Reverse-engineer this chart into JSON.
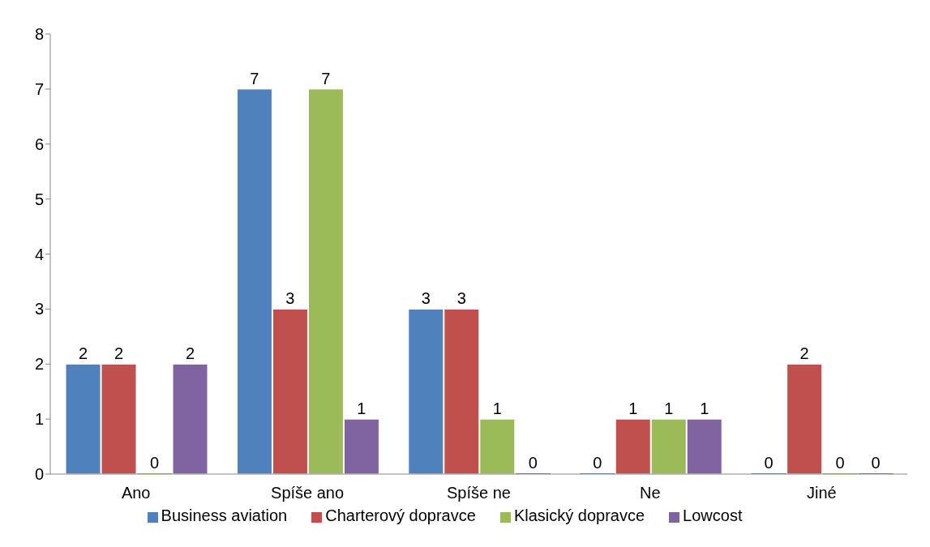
{
  "chart_data": {
    "type": "bar",
    "categories": [
      "Ano",
      "Spíše ano",
      "Spíše ne",
      "Ne",
      "Jiné"
    ],
    "series": [
      {
        "name": "Business aviation",
        "color": "#4f81bd",
        "values": [
          2,
          7,
          3,
          0,
          0
        ]
      },
      {
        "name": "Charterový dopravce",
        "color": "#c0504d",
        "values": [
          2,
          3,
          3,
          1,
          2
        ]
      },
      {
        "name": "Klasický dopravce",
        "color": "#9bbb59",
        "values": [
          0,
          7,
          1,
          1,
          0
        ]
      },
      {
        "name": "Lowcost",
        "color": "#8064a2",
        "values": [
          2,
          1,
          0,
          1,
          0
        ]
      }
    ],
    "ylim": [
      0,
      8
    ],
    "yticks": [
      0,
      1,
      2,
      3,
      4,
      5,
      6,
      7,
      8
    ],
    "grid": false,
    "legend": "bottom",
    "data_labels": true
  }
}
